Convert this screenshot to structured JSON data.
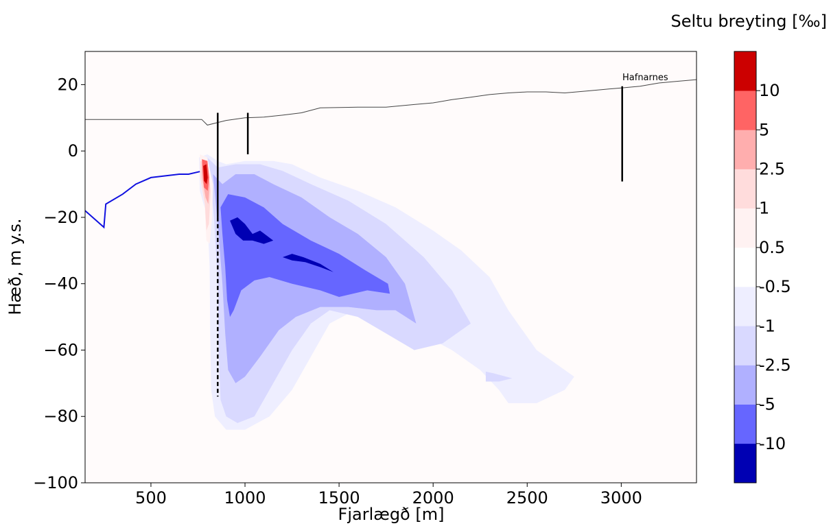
{
  "chart_data": {
    "type": "heatmap",
    "title": "",
    "xlabel": "Fjarlægð [m]",
    "ylabel": "Hæð, m y.s.",
    "xlim": [
      150,
      3400
    ],
    "ylim": [
      -100,
      30
    ],
    "xticks": [
      500,
      1000,
      1500,
      2000,
      2500,
      3000
    ],
    "yticks": [
      -100,
      -80,
      -60,
      -40,
      -20,
      0,
      20
    ],
    "grid": false,
    "colorbar": {
      "title": "Seltu breyting [‰]",
      "tick_labels": [
        "-10",
        "-5",
        "-2.5",
        "-1",
        "-0.5",
        "0.5",
        "1",
        "2.5",
        "5",
        "10"
      ],
      "levels": [
        {
          "label": "< -10",
          "color": "#0000b3"
        },
        {
          "label": "-10 to -5",
          "color": "#6666ff"
        },
        {
          "label": "-5 to -2.5",
          "color": "#b0b0ff"
        },
        {
          "label": "-2.5 to -1",
          "color": "#d9d9ff"
        },
        {
          "label": "-1 to -0.5",
          "color": "#eeeeff"
        },
        {
          "label": "-0.5 to 0.5",
          "color": "#ffffff"
        },
        {
          "label": "0.5 to 1",
          "color": "#fff2f2"
        },
        {
          "label": "1 to 2.5",
          "color": "#ffdcdc"
        },
        {
          "label": "2.5 to 5",
          "color": "#ffaeae"
        },
        {
          "label": "5 to 10",
          "color": "#ff6464"
        },
        {
          "label": "> 10",
          "color": "#cc0000"
        }
      ]
    },
    "background_color": "#fffbfb",
    "surface": {
      "color": "#444444",
      "points": [
        [
          150,
          9.5
        ],
        [
          300,
          9.5
        ],
        [
          500,
          9.5
        ],
        [
          770,
          9.5
        ],
        [
          800,
          7.8
        ],
        [
          850,
          8.5
        ],
        [
          900,
          9.2
        ],
        [
          1000,
          10
        ],
        [
          1100,
          10.2
        ],
        [
          1200,
          10.8
        ],
        [
          1300,
          11.5
        ],
        [
          1400,
          13
        ],
        [
          1600,
          13.2
        ],
        [
          1750,
          13.2
        ],
        [
          1900,
          14
        ],
        [
          2000,
          14.5
        ],
        [
          2100,
          15.5
        ],
        [
          2200,
          16.2
        ],
        [
          2300,
          17
        ],
        [
          2400,
          17.5
        ],
        [
          2500,
          17.8
        ],
        [
          2600,
          17.8
        ],
        [
          2700,
          17.5
        ],
        [
          2800,
          18
        ],
        [
          2900,
          18.5
        ],
        [
          3000,
          19
        ],
        [
          3100,
          19.5
        ],
        [
          3200,
          20.5
        ],
        [
          3300,
          21
        ],
        [
          3400,
          21.5
        ]
      ]
    },
    "sea_floor": {
      "color": "#1010e0",
      "points": [
        [
          150,
          -18
        ],
        [
          250,
          -23
        ],
        [
          260,
          -16
        ],
        [
          350,
          -13
        ],
        [
          420,
          -10
        ],
        [
          500,
          -8
        ],
        [
          650,
          -7
        ],
        [
          700,
          -7
        ],
        [
          760,
          -6.2
        ]
      ]
    },
    "wells": [
      {
        "x": 855,
        "top": 11.5,
        "bottom": -20,
        "dashed_bottom": -74
      },
      {
        "x": 1015,
        "top": 11.5,
        "bottom": -1
      },
      {
        "x": 3005,
        "top": 19.5,
        "bottom": -9.2,
        "label": "Hafnarnes"
      }
    ],
    "regions": [
      {
        "level": "-1 to -0.5",
        "color": "#eeeeff",
        "points": [
          [
            755,
            -2
          ],
          [
            800,
            -1
          ],
          [
            855,
            -3
          ],
          [
            900,
            -4
          ],
          [
            1000,
            -3
          ],
          [
            1150,
            -3
          ],
          [
            1250,
            -4
          ],
          [
            1400,
            -8
          ],
          [
            1600,
            -12
          ],
          [
            1800,
            -17
          ],
          [
            2000,
            -24
          ],
          [
            2150,
            -30
          ],
          [
            2300,
            -38
          ],
          [
            2400,
            -48
          ],
          [
            2550,
            -60
          ],
          [
            2750,
            -68
          ],
          [
            2700,
            -72
          ],
          [
            2550,
            -76
          ],
          [
            2400,
            -76
          ],
          [
            2350,
            -72
          ],
          [
            2250,
            -66
          ],
          [
            2100,
            -60
          ],
          [
            1900,
            -54
          ],
          [
            1700,
            -50
          ],
          [
            1550,
            -49
          ],
          [
            1450,
            -52
          ],
          [
            1350,
            -62
          ],
          [
            1250,
            -72
          ],
          [
            1130,
            -80
          ],
          [
            1000,
            -84
          ],
          [
            900,
            -84
          ],
          [
            840,
            -80
          ],
          [
            820,
            -72
          ],
          [
            815,
            -55
          ],
          [
            812,
            -35
          ],
          [
            800,
            -20
          ],
          [
            760,
            -12
          ]
        ]
      },
      {
        "level": "-2.5 to -1",
        "color": "#d9d9ff",
        "points": [
          [
            800,
            -2
          ],
          [
            855,
            -5
          ],
          [
            950,
            -4
          ],
          [
            1080,
            -4
          ],
          [
            1200,
            -6
          ],
          [
            1350,
            -10
          ],
          [
            1550,
            -15
          ],
          [
            1750,
            -22
          ],
          [
            1950,
            -32
          ],
          [
            2100,
            -42
          ],
          [
            2200,
            -52
          ],
          [
            2050,
            -58
          ],
          [
            1900,
            -60
          ],
          [
            1750,
            -55
          ],
          [
            1600,
            -50
          ],
          [
            1450,
            -48
          ],
          [
            1350,
            -52
          ],
          [
            1250,
            -60
          ],
          [
            1150,
            -70
          ],
          [
            1050,
            -80
          ],
          [
            960,
            -82
          ],
          [
            900,
            -80
          ],
          [
            870,
            -75
          ],
          [
            860,
            -60
          ],
          [
            855,
            -40
          ],
          [
            835,
            -20
          ],
          [
            815,
            -8
          ]
        ]
      },
      {
        "level": "-5 to -2.5",
        "color": "#b0b0ff",
        "points": [
          [
            830,
            -7
          ],
          [
            880,
            -10
          ],
          [
            950,
            -7
          ],
          [
            1050,
            -7
          ],
          [
            1150,
            -10
          ],
          [
            1300,
            -14
          ],
          [
            1450,
            -20
          ],
          [
            1600,
            -25
          ],
          [
            1750,
            -32
          ],
          [
            1850,
            -40
          ],
          [
            1910,
            -52
          ],
          [
            1800,
            -48
          ],
          [
            1700,
            -48
          ],
          [
            1550,
            -47
          ],
          [
            1400,
            -47
          ],
          [
            1270,
            -50
          ],
          [
            1180,
            -54
          ],
          [
            1080,
            -62
          ],
          [
            1000,
            -68
          ],
          [
            950,
            -70
          ],
          [
            910,
            -66
          ],
          [
            895,
            -55
          ],
          [
            880,
            -40
          ],
          [
            860,
            -25
          ]
        ]
      },
      {
        "level": "-10 to -5",
        "color": "#6666ff",
        "points": [
          [
            870,
            -17
          ],
          [
            910,
            -13
          ],
          [
            1000,
            -14
          ],
          [
            1100,
            -17
          ],
          [
            1200,
            -22
          ],
          [
            1350,
            -27
          ],
          [
            1500,
            -31
          ],
          [
            1640,
            -36
          ],
          [
            1760,
            -40
          ],
          [
            1770,
            -43
          ],
          [
            1650,
            -42
          ],
          [
            1500,
            -44
          ],
          [
            1400,
            -42
          ],
          [
            1250,
            -40
          ],
          [
            1130,
            -38
          ],
          [
            1050,
            -39
          ],
          [
            980,
            -42
          ],
          [
            940,
            -48
          ],
          [
            920,
            -50
          ],
          [
            905,
            -45
          ],
          [
            895,
            -35
          ],
          [
            880,
            -25
          ]
        ]
      },
      {
        "level": "< -10",
        "color": "#0000b3",
        "points": [
          [
            920,
            -21
          ],
          [
            960,
            -20
          ],
          [
            1000,
            -22
          ],
          [
            1040,
            -25
          ],
          [
            1080,
            -24
          ],
          [
            1150,
            -27
          ],
          [
            1100,
            -28
          ],
          [
            1040,
            -27
          ],
          [
            990,
            -27
          ],
          [
            950,
            -25
          ]
        ]
      },
      {
        "level": "< -10",
        "color": "#0000b3",
        "points": [
          [
            1200,
            -32
          ],
          [
            1250,
            -31
          ],
          [
            1310,
            -32
          ],
          [
            1400,
            -34
          ],
          [
            1470,
            -36.5
          ],
          [
            1400,
            -35
          ],
          [
            1320,
            -33.5
          ],
          [
            1250,
            -33
          ]
        ]
      },
      {
        "level": "0.5 to 1",
        "color": "#fff2f2",
        "points": [
          [
            760,
            -1
          ],
          [
            800,
            -2
          ],
          [
            830,
            -10
          ],
          [
            825,
            -20
          ],
          [
            812,
            -28
          ],
          [
            795,
            -27
          ],
          [
            785,
            -16
          ],
          [
            760,
            -8
          ]
        ]
      },
      {
        "level": "1 to 2.5",
        "color": "#ffdcdc",
        "points": [
          [
            762,
            -3
          ],
          [
            800,
            -3.5
          ],
          [
            818,
            -12
          ],
          [
            808,
            -22
          ],
          [
            795,
            -24
          ],
          [
            787,
            -16
          ],
          [
            762,
            -8
          ]
        ]
      },
      {
        "level": "2.5 to 5",
        "color": "#ffaeae",
        "points": [
          [
            770,
            -2.5
          ],
          [
            800,
            -3
          ],
          [
            812,
            -10
          ],
          [
            805,
            -16
          ],
          [
            790,
            -14
          ],
          [
            772,
            -8
          ]
        ]
      },
      {
        "level": "5 to 10",
        "color": "#ff6464",
        "points": [
          [
            772,
            -2.5
          ],
          [
            800,
            -3
          ],
          [
            810,
            -8
          ],
          [
            802,
            -12
          ],
          [
            782,
            -11
          ],
          [
            775,
            -6
          ]
        ]
      },
      {
        "level": "> 10",
        "color": "#cc0000",
        "points": [
          [
            778,
            -4.5
          ],
          [
            795,
            -4
          ],
          [
            802,
            -8
          ],
          [
            796,
            -10
          ],
          [
            782,
            -9
          ]
        ]
      },
      {
        "level": "-2.5 to -1",
        "color": "#d9d9ff",
        "points": [
          [
            2280,
            -66.5
          ],
          [
            2320,
            -67
          ],
          [
            2420,
            -68.5
          ],
          [
            2350,
            -69.5
          ],
          [
            2280,
            -69.5
          ]
        ]
      }
    ]
  }
}
